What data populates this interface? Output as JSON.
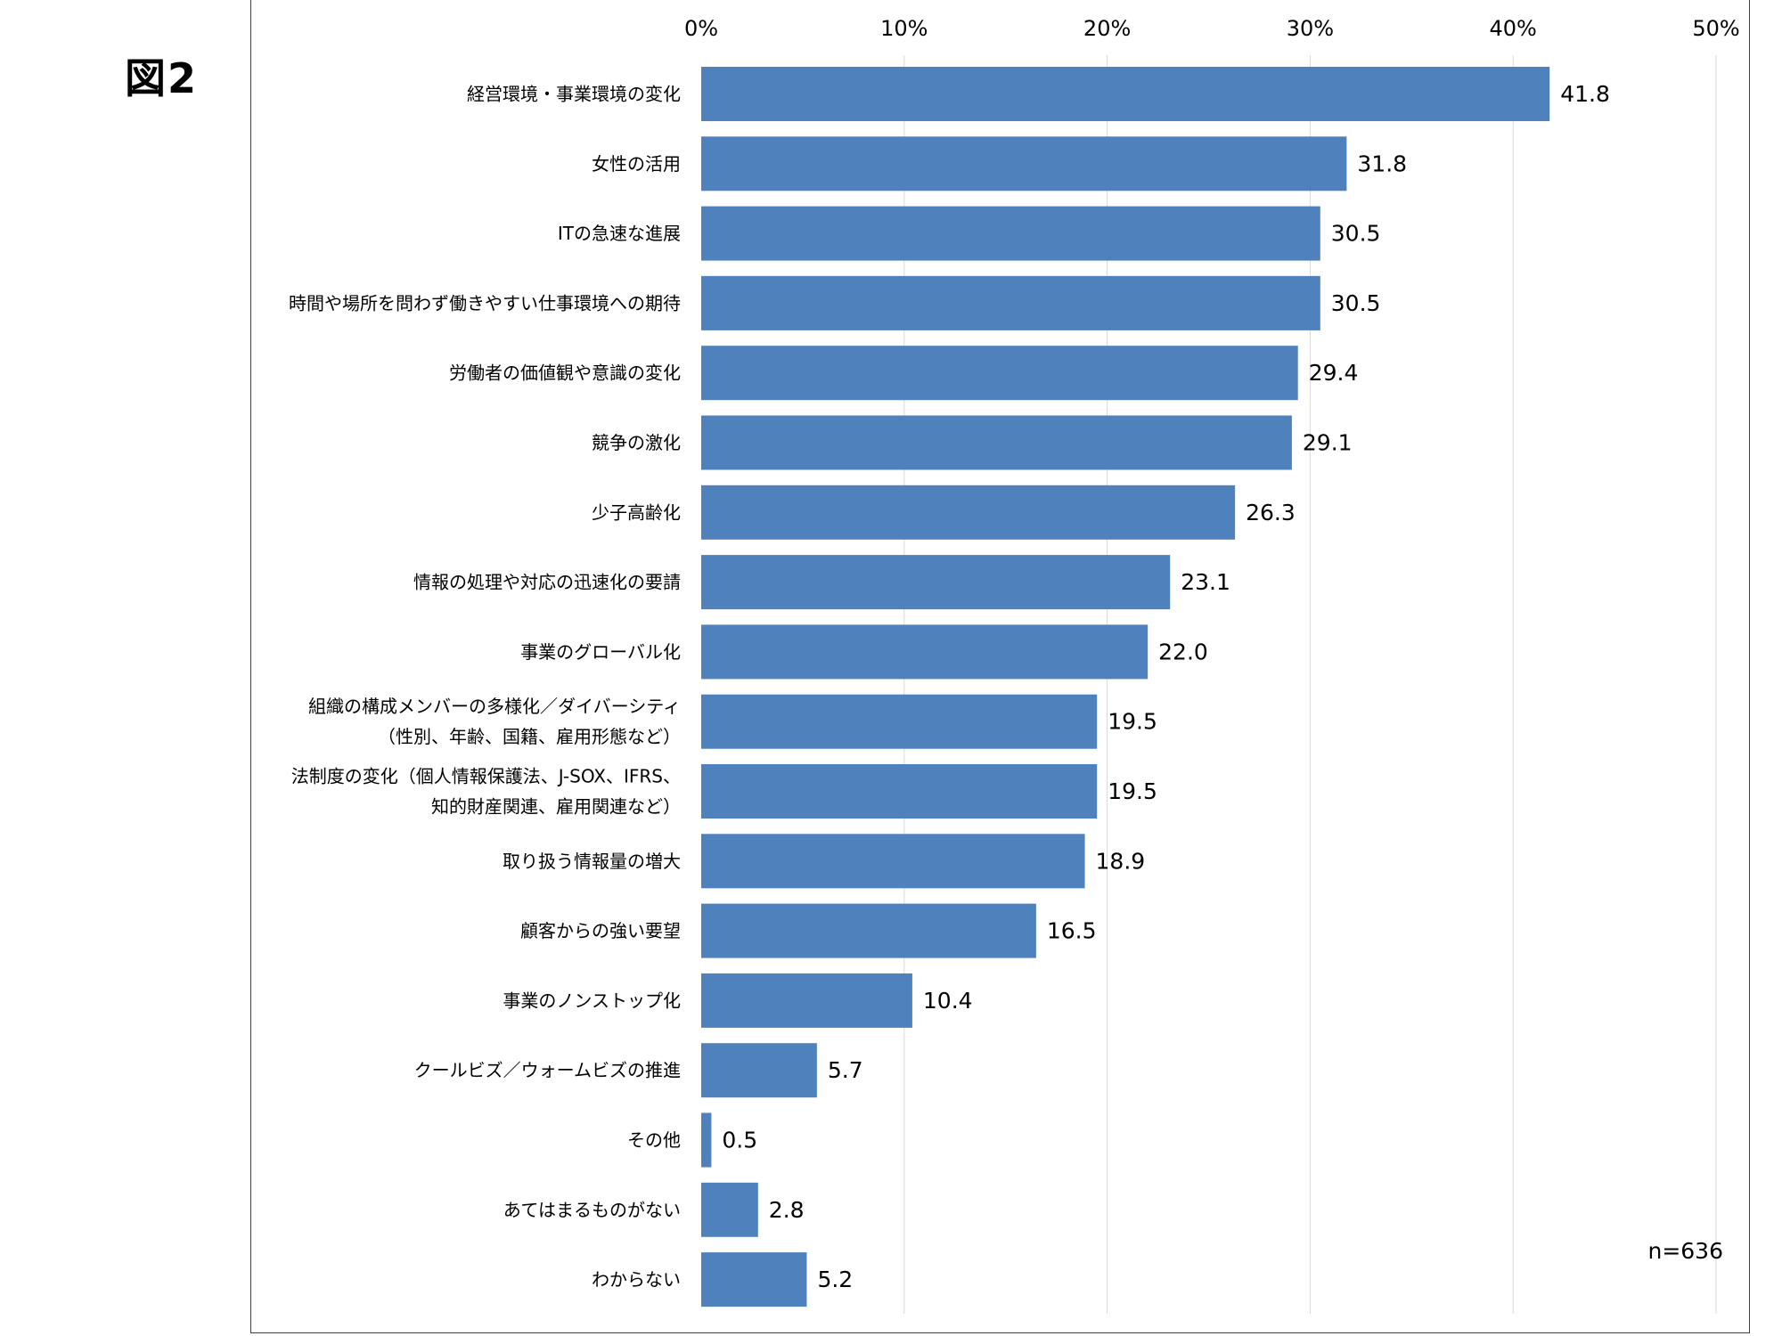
{
  "figure": {
    "label": "図2",
    "sample_size": "n=636"
  },
  "colors": {
    "bar": "#4F81BD",
    "gridline": "#D9D9D9",
    "frame": "#404040"
  },
  "chart_data": {
    "type": "bar",
    "orientation": "horizontal",
    "title": "",
    "xlabel": "",
    "ylabel": "",
    "xlim": [
      0,
      50
    ],
    "x_ticks": [
      0,
      10,
      20,
      30,
      40,
      50
    ],
    "x_tick_labels": [
      "0%",
      "10%",
      "20%",
      "30%",
      "40%",
      "50%"
    ],
    "x_axis_position": "top",
    "grid": "vertical",
    "legend": "none",
    "categories": [
      [
        "経営環境・事業環境の変化"
      ],
      [
        "女性の活用"
      ],
      [
        "ITの急速な進展"
      ],
      [
        "時間や場所を問わず働きやすい仕事環境への期待"
      ],
      [
        "労働者の価値観や意識の変化"
      ],
      [
        "競争の激化"
      ],
      [
        "少子高齢化"
      ],
      [
        "情報の処理や対応の迅速化の要請"
      ],
      [
        "事業のグローバル化"
      ],
      [
        "組織の構成メンバーの多様化／ダイバーシティ",
        "（性別、年齢、国籍、雇用形態など）"
      ],
      [
        "法制度の変化（個人情報保護法、J-SOX、IFRS、",
        "知的財産関連、雇用関連など）"
      ],
      [
        "取り扱う情報量の増大"
      ],
      [
        "顧客からの強い要望"
      ],
      [
        "事業のノンストップ化"
      ],
      [
        "クールビズ／ウォームビズの推進"
      ],
      [
        "その他"
      ],
      [
        "あてはまるものがない"
      ],
      [
        "わからない"
      ]
    ],
    "values": [
      41.8,
      31.8,
      30.5,
      30.5,
      29.4,
      29.1,
      26.3,
      23.1,
      22.0,
      19.5,
      19.5,
      18.9,
      16.5,
      10.4,
      5.7,
      0.5,
      2.8,
      5.2
    ],
    "value_labels": [
      "41.8",
      "31.8",
      "30.5",
      "30.5",
      "29.4",
      "29.1",
      "26.3",
      "23.1",
      "22.0",
      "19.5",
      "19.5",
      "18.9",
      "16.5",
      "10.4",
      "5.7",
      "0.5",
      "2.8",
      "5.2"
    ]
  }
}
